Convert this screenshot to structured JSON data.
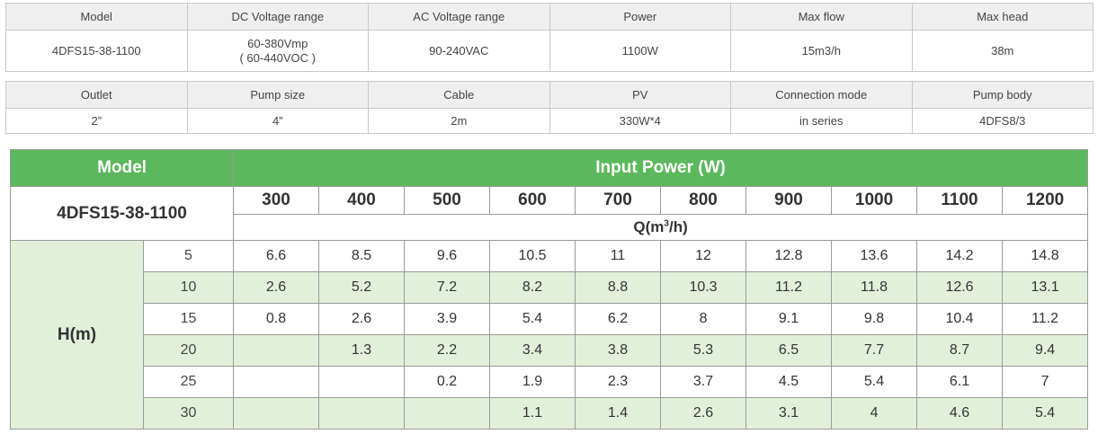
{
  "spec_table_1": {
    "headers": [
      "Model",
      "DC Voltage range",
      "AC Voltage range",
      "Power",
      "Max flow",
      "Max head"
    ],
    "values": [
      "4DFS15-38-1100",
      "60-380Vmp",
      "90-240VAC",
      "1100W",
      "15m3/h",
      "38m"
    ],
    "dc_voltage_line2": "( 60-440VOC )"
  },
  "spec_table_2": {
    "headers": [
      "Outlet",
      "Pump size",
      "Cable",
      "PV",
      "Connection mode",
      "Pump body"
    ],
    "values": [
      "2”",
      "4”",
      "2m",
      "330W*4",
      "in series",
      "4DFS8/3"
    ]
  },
  "performance": {
    "model_header": "Model",
    "input_power_header": "Input Power (W)",
    "model_name": "4DFS15-38-1100",
    "power_values": [
      "300",
      "400",
      "500",
      "600",
      "700",
      "800",
      "900",
      "1000",
      "1100",
      "1200"
    ],
    "flow_label_prefix": "Q(m",
    "flow_label_sup": "3",
    "flow_label_suffix": "/h)",
    "head_label": "H(m)",
    "heads": [
      "5",
      "10",
      "15",
      "20",
      "25",
      "30"
    ],
    "rows": [
      [
        "6.6",
        "8.5",
        "9.6",
        "10.5",
        "11",
        "12",
        "12.8",
        "13.6",
        "14.2",
        "14.8"
      ],
      [
        "2.6",
        "5.2",
        "7.2",
        "8.2",
        "8.8",
        "10.3",
        "11.2",
        "11.8",
        "12.6",
        "13.1"
      ],
      [
        "0.8",
        "2.6",
        "3.9",
        "5.4",
        "6.2",
        "8",
        "9.1",
        "9.8",
        "10.4",
        "11.2"
      ],
      [
        "",
        "1.3",
        "2.2",
        "3.4",
        "3.8",
        "5.3",
        "6.5",
        "7.7",
        "8.7",
        "9.4"
      ],
      [
        "",
        "",
        "0.2",
        "1.9",
        "2.3",
        "3.7",
        "4.5",
        "5.4",
        "6.1",
        "7"
      ],
      [
        "",
        "",
        "",
        "1.1",
        "1.4",
        "2.6",
        "3.1",
        "4",
        "4.6",
        "5.4"
      ]
    ]
  },
  "colors": {
    "header_green": "#5cb85c",
    "row_green": "#e2f0d9",
    "spec_header_gray": "#efefef"
  }
}
